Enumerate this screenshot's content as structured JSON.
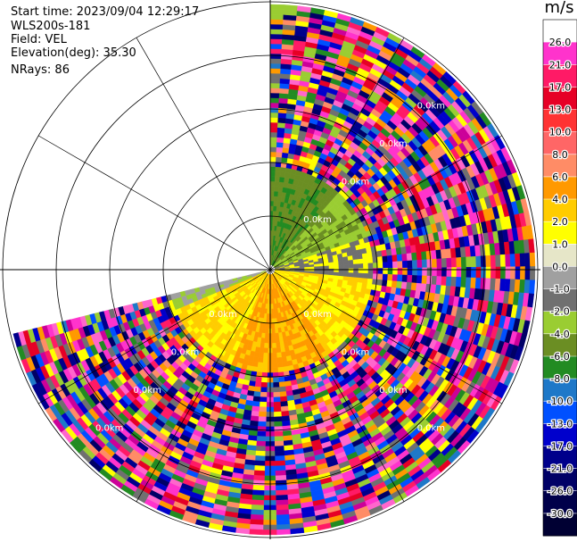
{
  "info": {
    "start_time": "Start time: 2023/09/04 12:29:17",
    "instrument": "WLS200s-181",
    "field": "Field: VEL",
    "elevation": "Elevation(deg): 35.30",
    "nrays": "NRays: 86"
  },
  "chart_data": {
    "type": "polar-ppi",
    "units": "m/s",
    "range_ring_labels": [
      "0.0km",
      "0.0km",
      "0.0km",
      "0.0km",
      "0.0km",
      "0.0km"
    ],
    "colorbar": {
      "title": "m/s",
      "ticks": [
        "26.0",
        "21.0",
        "17.0",
        "13.0",
        "10.0",
        "8.0",
        "6.0",
        "4.0",
        "2.0",
        "1.0",
        "0.0",
        "-1.0",
        "-2.0",
        "-4.0",
        "-6.0",
        "-8.0",
        "-10.0",
        "-13.0",
        "-17.0",
        "-21.0",
        "-26.0",
        "-30.0"
      ],
      "colors": [
        "#ffffff",
        "#ff33cc",
        "#ff1a66",
        "#e60026",
        "#ff3333",
        "#ff6666",
        "#ff8c66",
        "#ff9900",
        "#ffcc00",
        "#ffff00",
        "#e6e6c8",
        "#a0a0a0",
        "#707070",
        "#9acd32",
        "#6b8e23",
        "#228b22",
        "#1e78c8",
        "#0050ff",
        "#0000cc",
        "#00008b",
        "#000066",
        "#00004a",
        "#000033"
      ]
    },
    "azimuth_coverage_deg": [
      0,
      256
    ],
    "range_max_km": 3.0,
    "grid": true
  }
}
